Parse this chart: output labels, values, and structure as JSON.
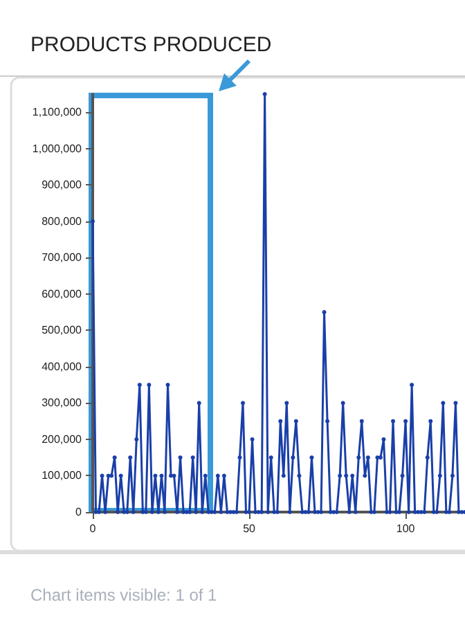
{
  "chart_data": {
    "type": "line",
    "title": "PRODUCTS PRODUCED",
    "annotations": [
      "Chart items visible: 1 of 1"
    ],
    "x": [
      0,
      1,
      2,
      3,
      4,
      5,
      6,
      7,
      8,
      9,
      10,
      11,
      12,
      13,
      14,
      15,
      16,
      17,
      18,
      19,
      20,
      21,
      22,
      23,
      24,
      25,
      26,
      27,
      28,
      29,
      30,
      31,
      32,
      33,
      34,
      35,
      36,
      37,
      38,
      39,
      40,
      41,
      42,
      43,
      44,
      45,
      46,
      47,
      48,
      49,
      50,
      51,
      52,
      53,
      54,
      55,
      56,
      57,
      58,
      59,
      60,
      61,
      62,
      63,
      64,
      65,
      66,
      67,
      68,
      69,
      70,
      71,
      72,
      73,
      74,
      75,
      76,
      77,
      78,
      79,
      80,
      81,
      82,
      83,
      84,
      85,
      86,
      87,
      88,
      89,
      90,
      91,
      92,
      93,
      94,
      95,
      96,
      97,
      98,
      99,
      100,
      101,
      102,
      103,
      104,
      105,
      106,
      107,
      108,
      109,
      110,
      111,
      112,
      113,
      114,
      115,
      116,
      117,
      118,
      119
    ],
    "series": [
      {
        "color": "#1a3fa8",
        "values": [
          800000,
          0,
          0,
          100000,
          0,
          100000,
          100000,
          150000,
          0,
          100000,
          0,
          0,
          150000,
          0,
          200000,
          350000,
          0,
          0,
          350000,
          0,
          100000,
          0,
          100000,
          0,
          350000,
          100000,
          100000,
          0,
          150000,
          0,
          0,
          0,
          150000,
          0,
          300000,
          0,
          100000,
          0,
          0,
          0,
          100000,
          0,
          100000,
          0,
          0,
          0,
          0,
          150000,
          300000,
          0,
          0,
          200000,
          0,
          0,
          0,
          1150000,
          0,
          150000,
          0,
          0,
          250000,
          100000,
          300000,
          0,
          150000,
          250000,
          100000,
          0,
          0,
          0,
          150000,
          0,
          0,
          0,
          550000,
          250000,
          0,
          0,
          0,
          100000,
          300000,
          100000,
          0,
          100000,
          0,
          150000,
          250000,
          100000,
          150000,
          0,
          0,
          150000,
          150000,
          200000,
          0,
          0,
          250000,
          0,
          0,
          100000,
          250000,
          0,
          350000,
          0,
          0,
          0,
          0,
          150000,
          250000,
          0,
          0,
          100000,
          300000,
          0,
          0,
          100000,
          300000,
          0,
          0,
          0
        ]
      }
    ],
    "xlim": [
      0,
      119
    ],
    "xticks": [
      0,
      50,
      100
    ],
    "ylim": [
      0,
      1150000
    ],
    "yticks": [
      0,
      {
        "value": 100000,
        "label": "100,000"
      },
      {
        "value": 200000,
        "label": "200,000"
      },
      {
        "value": 300000,
        "label": "300,000"
      },
      {
        "value": 400000,
        "label": "400,000"
      },
      {
        "value": 500000,
        "label": "500,000"
      },
      {
        "value": 600000,
        "label": "600,000"
      },
      {
        "value": 700000,
        "label": "700,000"
      },
      {
        "value": 800000,
        "label": "800,000"
      },
      {
        "value": 900000,
        "label": "900,000"
      },
      {
        "value": 1000000,
        "label": "1,000,000"
      },
      {
        "value": 1100000,
        "label": "1,100,000"
      }
    ],
    "grid": false,
    "marker": "circle",
    "line_style": "solid"
  }
}
